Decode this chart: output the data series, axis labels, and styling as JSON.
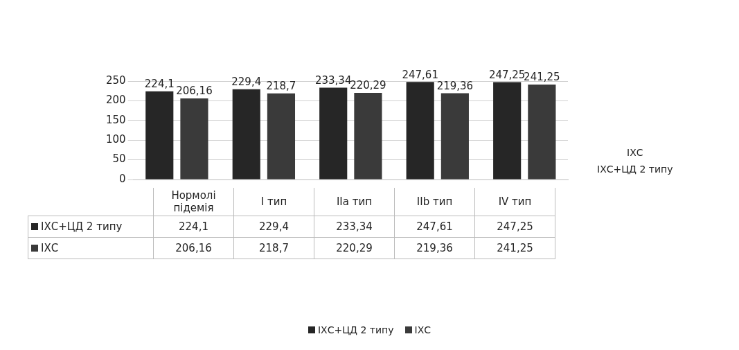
{
  "chart_data": {
    "type": "bar",
    "categories": [
      "Нормолі підемія",
      "I тип",
      "IIa тип",
      "IIb тип",
      "IV тип"
    ],
    "series": [
      {
        "name": "ІХС+ЦД 2 типу",
        "color": "#262626",
        "values": [
          224.1,
          229.4,
          233.34,
          247.61,
          247.25
        ],
        "value_labels": [
          "224,1",
          "229,4",
          "233,34",
          "247,61",
          "247,25"
        ]
      },
      {
        "name": "ІХС",
        "color": "#3a3a3a",
        "values": [
          206.16,
          218.7,
          220.29,
          219.36,
          241.25
        ],
        "value_labels": [
          "206,16",
          "218,7",
          "220,29",
          "219,36",
          "241,25"
        ]
      }
    ],
    "ylim": [
      0,
      250
    ],
    "yticks": [
      0,
      50,
      100,
      150,
      200,
      250
    ],
    "grid": "y",
    "legend": "bottom",
    "data_labels": true
  }
}
